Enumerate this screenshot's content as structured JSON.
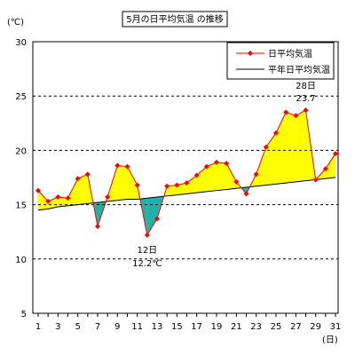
{
  "chart_data": {
    "type": "line",
    "title": "5月の日平均気温 の推移",
    "ylabel": "(℃)",
    "xlabel": "(日)",
    "ylim": [
      5,
      30
    ],
    "xlim": [
      1,
      31
    ],
    "grid": true,
    "legend_position": "top-right",
    "x": [
      1,
      2,
      3,
      4,
      5,
      6,
      7,
      8,
      9,
      10,
      11,
      12,
      13,
      14,
      15,
      16,
      17,
      18,
      19,
      20,
      21,
      22,
      23,
      24,
      25,
      26,
      27,
      28,
      29,
      30,
      31
    ],
    "x_ticks": [
      "1",
      "3",
      "5",
      "7",
      "9",
      "11",
      "13",
      "15",
      "17",
      "19",
      "21",
      "23",
      "25",
      "27",
      "29",
      "31"
    ],
    "y_ticks": [
      "5",
      "10",
      "15",
      "20",
      "25",
      "30"
    ],
    "series": [
      {
        "name": "日平均気温",
        "color": "#ff0000",
        "values": [
          16.3,
          15.3,
          15.7,
          15.6,
          17.4,
          17.8,
          13.0,
          15.7,
          18.6,
          18.5,
          16.8,
          12.2,
          13.7,
          16.7,
          16.8,
          17.0,
          17.7,
          18.5,
          18.9,
          18.8,
          17.1,
          16.0,
          17.8,
          20.3,
          21.6,
          23.5,
          23.2,
          23.7,
          17.3,
          18.3,
          19.7
        ]
      },
      {
        "name": "平年日平均気温",
        "color": "#000000",
        "values": [
          14.5,
          14.6,
          14.8,
          14.9,
          15.0,
          15.1,
          15.2,
          15.3,
          15.4,
          15.5,
          15.5,
          15.6,
          15.7,
          15.8,
          15.9,
          16.0,
          16.1,
          16.2,
          16.3,
          16.4,
          16.5,
          16.6,
          16.7,
          16.8,
          16.9,
          17.0,
          17.1,
          17.2,
          17.3,
          17.4,
          17.5
        ]
      }
    ],
    "fill_above_color": "#ffff00",
    "fill_below_color": "#20b2aa",
    "annotations": [
      {
        "x": 12,
        "y": 12.2,
        "line1": "12日",
        "line2": "12.2℃",
        "placement": "below"
      },
      {
        "x": 28,
        "y": 23.7,
        "line1": "28日",
        "line2": "23.7",
        "placement": "above"
      }
    ]
  }
}
